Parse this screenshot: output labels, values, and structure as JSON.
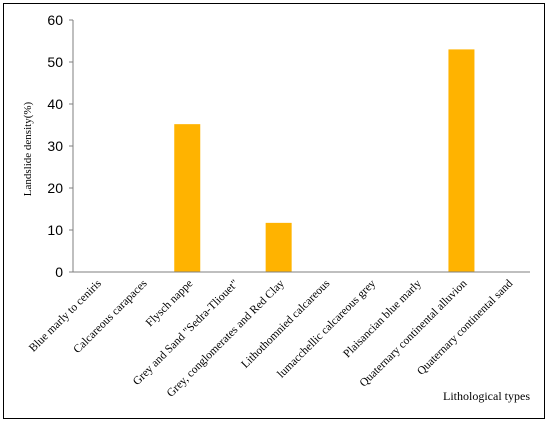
{
  "chart_data": {
    "type": "bar",
    "title": "",
    "xlabel": "Lithological types",
    "ylabel": "Landslide density(%)",
    "ylim": [
      0,
      60
    ],
    "yticks": [
      0,
      10,
      20,
      30,
      40,
      50,
      60
    ],
    "grid": false,
    "legend": "none",
    "bar_color": "#FFB300",
    "categories": [
      "Blue marly to ceniris",
      "Calcareous carapaces",
      "Flysch nappe",
      "Grey and Sand \"Sedra-Tliouet\"",
      "Grey, conglomerates and Red Clay",
      "Lithothomnied calcareous",
      "lumacchellic calcareous grey",
      "Plaisancian blue marly",
      "Quaternary continental alluvion",
      "Quaternary continental sand"
    ],
    "values": [
      0,
      0,
      35.2,
      0,
      11.7,
      0,
      0,
      0,
      53,
      0
    ]
  }
}
